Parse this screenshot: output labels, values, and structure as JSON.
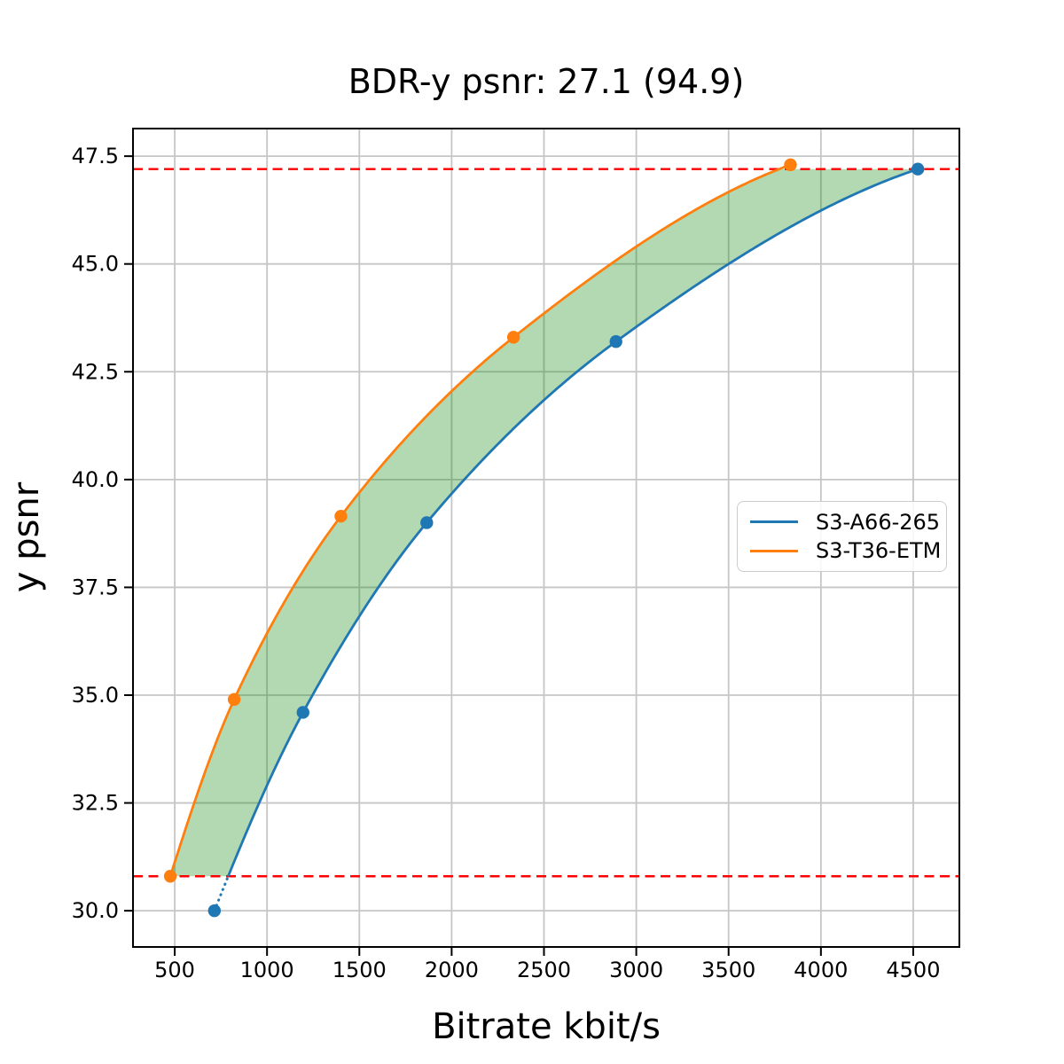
{
  "chart_data": {
    "type": "line",
    "title": "BDR-y psnr: 27.1 (94.9)",
    "xlabel": "Bitrate kbit/s",
    "ylabel": "y psnr",
    "xlim": [
      274,
      4750
    ],
    "ylim": [
      29.16,
      48.14
    ],
    "xticks": [
      500,
      1000,
      1500,
      2000,
      2500,
      3000,
      3500,
      4000,
      4500
    ],
    "yticks": [
      30.0,
      32.5,
      35.0,
      37.5,
      40.0,
      42.5,
      45.0,
      47.5
    ],
    "grid": true,
    "legend_position": "right-center",
    "series": [
      {
        "name": "S3-A66-265",
        "color": "#1f77b4",
        "x": [
          715,
          1195,
          1865,
          2890,
          4525
        ],
        "y": [
          30.0,
          34.6,
          39.0,
          43.2,
          47.2
        ]
      },
      {
        "name": "S3-T36-ETM",
        "color": "#ff7f0e",
        "x": [
          476,
          822,
          1400,
          2335,
          3835
        ],
        "y": [
          30.8,
          34.9,
          39.15,
          43.3,
          47.3
        ]
      }
    ],
    "overlap_band": {
      "low": 30.8,
      "high": 47.2,
      "refline_color": "#ff0000",
      "fill_color": "rgba(0,128,0,0.30)"
    }
  }
}
